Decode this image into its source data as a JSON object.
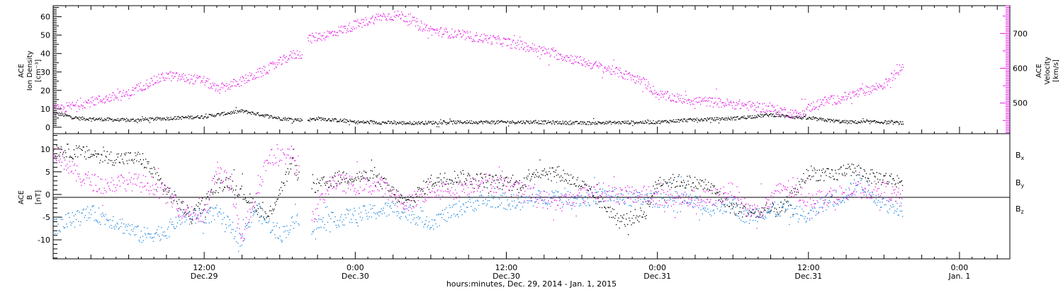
{
  "colors": {
    "density": "#000000",
    "velocity": "#e619e6",
    "bx": "#000000",
    "by": "#1a84e0",
    "bz": "#e619e6"
  },
  "chart_data": [
    {
      "type": "scatter",
      "panel": "top",
      "ylabel_left": [
        "ACE",
        "Ion Density",
        "[cm⁻³]"
      ],
      "ylabel_right": [
        "ACE",
        "Velocity",
        "[km/s]"
      ],
      "y_left_range": [
        -3.5,
        66
      ],
      "y_left_ticks": [
        "0",
        "10",
        "20",
        "30",
        "40",
        "50",
        "60"
      ],
      "y_right_range": [
        412,
        780
      ],
      "y_right_ticks": [
        "500",
        "600",
        "700"
      ],
      "x_range_hours": [
        0,
        76
      ],
      "density_knots": {
        "x": [
          0,
          2,
          6,
          9,
          12,
          15,
          18,
          20,
          21,
          24,
          28,
          33,
          38,
          42,
          48,
          50,
          54,
          57,
          60,
          63,
          66,
          67.5
        ],
        "y": [
          8,
          5,
          4,
          5,
          6,
          9,
          5,
          4,
          5,
          3,
          2.5,
          3,
          3,
          2.5,
          3,
          4,
          5,
          7,
          5,
          3,
          3,
          2.5
        ]
      },
      "velocity_knots": {
        "x": [
          0,
          3,
          6,
          7,
          9,
          12,
          13,
          15,
          17,
          19,
          19.8,
          20.2,
          22,
          24,
          26,
          27.6,
          30,
          33,
          35,
          38,
          42,
          45,
          47,
          48,
          50,
          52,
          55,
          58,
          59,
          61,
          62,
          64,
          66,
          67.5
        ],
        "y": [
          480,
          505,
          528,
          550,
          580,
          565,
          540,
          565,
          598,
          640,
          643,
          685,
          700,
          725,
          750,
          753,
          710,
          693,
          683,
          660,
          620,
          588,
          560,
          525,
          512,
          505,
          495,
          478,
          468,
          505,
          510,
          530,
          555,
          608
        ]
      },
      "velocity_gaps": [
        [
          19.8,
          20.2
        ]
      ]
    },
    {
      "type": "scatter",
      "panel": "bottom",
      "ylabel_left": [
        "ACE",
        "B",
        "[nT]"
      ],
      "y_range": [
        -14.2,
        13.4
      ],
      "y_ticks": [
        "10",
        "5",
        "0",
        "-5",
        "-10"
      ],
      "legend": [
        "B",
        "B",
        "B"
      ],
      "legend_sub": [
        "x",
        "y",
        "z"
      ],
      "x_range_hours": [
        0,
        76
      ],
      "bx_knots": {
        "x": [
          0,
          3,
          5,
          7,
          9,
          10,
          11,
          13,
          14,
          17,
          19,
          20,
          23,
          25,
          26,
          28,
          30,
          32,
          35,
          37,
          38,
          40,
          42,
          44,
          45,
          47,
          48,
          50,
          52,
          54,
          56,
          58,
          60,
          62,
          63,
          65,
          67.5
        ],
        "y": [
          10,
          9,
          8,
          8,
          1,
          -2,
          -5,
          2,
          3,
          -5,
          7,
          1,
          4,
          4,
          3,
          -2,
          3,
          4,
          3,
          2,
          5,
          5,
          2,
          -3,
          -6,
          -4,
          3,
          3,
          2,
          -3,
          -4,
          -3,
          5,
          4,
          6,
          4,
          3
        ]
      },
      "by_knots": {
        "x": [
          0,
          3,
          5,
          7,
          9,
          10,
          11,
          13,
          15,
          16,
          18,
          19.5,
          20.5,
          23,
          25,
          27,
          29,
          30,
          33,
          35,
          37,
          38,
          40,
          42,
          44,
          46,
          48,
          50,
          52,
          54,
          55,
          56,
          58,
          60,
          61,
          63,
          64,
          66,
          67.5
        ],
        "y": [
          -7,
          -4,
          -6,
          -9,
          -8,
          -5,
          -5,
          -4,
          -10,
          -3,
          -9,
          -5,
          -7,
          -5,
          -4,
          -3,
          -5,
          -6,
          -2,
          -1,
          -2,
          -1,
          0,
          -1,
          0,
          -1,
          -1,
          -1,
          -3,
          -2,
          -5,
          -4,
          -3,
          -5,
          -2,
          0,
          3,
          -2,
          -3
        ]
      },
      "bz_knots": {
        "x": [
          0,
          2,
          4,
          6,
          8,
          9,
          10,
          12,
          13,
          14,
          15,
          17,
          19,
          19.5,
          20.5,
          22,
          24,
          26,
          28,
          30,
          32,
          34,
          36,
          38,
          40,
          42,
          43,
          45,
          47,
          50,
          52,
          54,
          55,
          56,
          58,
          60,
          62,
          64,
          66,
          67.5
        ],
        "y": [
          10,
          4,
          2,
          3,
          2,
          0,
          -3,
          -5,
          6,
          2,
          -9,
          8,
          9,
          5,
          -6,
          3,
          2,
          2,
          -2,
          1,
          1,
          3,
          2,
          0,
          -2,
          0,
          1,
          0,
          0,
          -1,
          -1,
          1,
          -3,
          -4,
          2,
          -1,
          0,
          1,
          1,
          -1
        ]
      },
      "b_gaps": [
        [
          19.5,
          20.5
        ]
      ]
    }
  ],
  "x_axis": {
    "tick_labels": [
      "12:00",
      "0:00",
      "12:00",
      "0:00",
      "12:00",
      "0:00"
    ],
    "date_labels": [
      "Dec.29",
      "Dec.30",
      "Dec.30",
      "Dec.31",
      "Dec.31",
      "Jan. 1"
    ],
    "tick_hours": [
      12,
      24,
      36,
      48,
      60,
      72
    ],
    "title": "hours:minutes, Dec. 29, 2014 - Jan. 1, 2015"
  }
}
